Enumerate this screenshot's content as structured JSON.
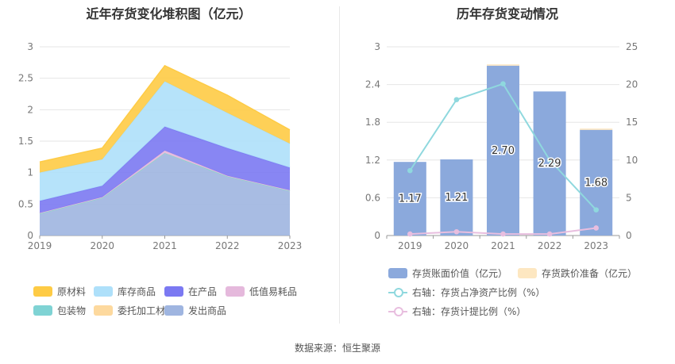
{
  "left": {
    "title": "近年存货变化堆积图（亿元）"
  },
  "right": {
    "title": "历年存货变动情况"
  },
  "source_text": "数据来源：恒生聚源",
  "chart_data": [
    {
      "type": "area",
      "stacked": true,
      "title": "近年存货变化堆积图（亿元）",
      "categories": [
        "2019",
        "2020",
        "2021",
        "2022",
        "2023"
      ],
      "ylim": [
        0,
        3
      ],
      "yticks": [
        "0",
        "0.5",
        "1",
        "1.5",
        "2",
        "2.5",
        "3"
      ],
      "grid": true,
      "legend_position": "bottom",
      "series": [
        {
          "name": "原材料",
          "color": "#fecb45",
          "values": [
            0.17,
            0.18,
            0.25,
            0.28,
            0.22
          ]
        },
        {
          "name": "库存商品",
          "color": "#aee0fa",
          "values": [
            0.45,
            0.42,
            0.72,
            0.56,
            0.38
          ]
        },
        {
          "name": "在产品",
          "color": "#7b79f2",
          "values": [
            0.19,
            0.18,
            0.38,
            0.44,
            0.36
          ]
        },
        {
          "name": "低值易耗品",
          "color": "#e5b9dc",
          "values": [
            0.01,
            0.01,
            0.04,
            0.01,
            0.01
          ]
        },
        {
          "name": "包装物",
          "color": "#7fd3d4",
          "values": [
            0.0,
            0.0,
            0.0,
            0.0,
            0.0
          ]
        },
        {
          "name": "委托加工材料",
          "color": "#fdd99e",
          "values": [
            0.0,
            0.0,
            0.0,
            0.0,
            0.0
          ]
        },
        {
          "name": "发出商品",
          "color": "#9fb5e0",
          "values": [
            0.35,
            0.6,
            1.31,
            0.94,
            0.71
          ]
        }
      ]
    },
    {
      "type": "bar",
      "title": "历年存货变动情况",
      "categories": [
        "2019",
        "2020",
        "2021",
        "2022",
        "2023"
      ],
      "ylim": [
        0,
        3
      ],
      "yticks": [
        "0",
        "0.6",
        "1.2",
        "1.8",
        "2.4",
        "3"
      ],
      "y2lim": [
        0,
        25
      ],
      "y2ticks": [
        "0",
        "5",
        "10",
        "15",
        "20",
        "25"
      ],
      "grid": true,
      "legend_position": "bottom",
      "bar_series": [
        {
          "name": "存货账面价值（亿元）",
          "color": "#8ba9dc",
          "values": [
            1.17,
            1.21,
            2.7,
            2.29,
            1.68
          ],
          "labels": [
            "1.17",
            "1.21",
            "2.70",
            "2.29",
            "1.68"
          ]
        },
        {
          "name": "存货跌价准备（亿元）",
          "color": "#fde7c1",
          "values": [
            0.0,
            0.0,
            0.02,
            0.0,
            0.02
          ]
        }
      ],
      "line_series": [
        {
          "name": "右轴：存货占净资产比例（%）",
          "color": "#8fd8de",
          "values": [
            8.6,
            18.0,
            20.1,
            10.0,
            3.4
          ]
        },
        {
          "name": "右轴：存货计提比例（%）",
          "color": "#e8bedf",
          "values": [
            0.2,
            0.5,
            0.2,
            0.2,
            1.0
          ]
        }
      ]
    }
  ]
}
